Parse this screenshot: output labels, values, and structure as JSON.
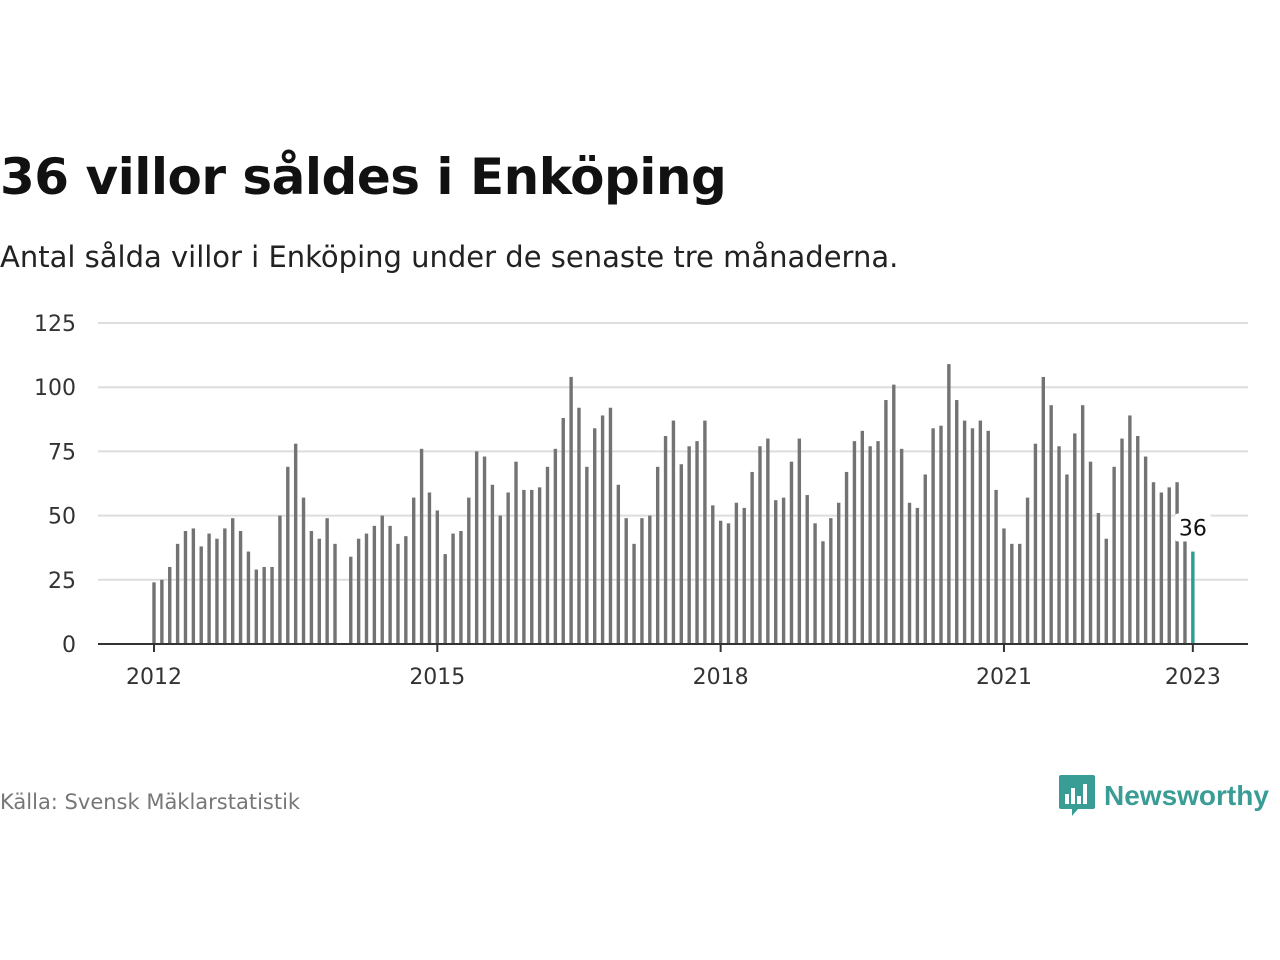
{
  "header": {
    "title": "36 villor såldes i Enköping",
    "subtitle": "Antal sålda villor i Enköping under de senaste tre månaderna."
  },
  "footer": {
    "source": "Källa: Svensk Mäklarstatistik",
    "brand": "Newsworthy",
    "brand_icon": "bar-chart-speech-bubble-icon"
  },
  "colors": {
    "bar": "#737373",
    "highlight": "#2a9d96",
    "grid": "#dddddd",
    "axis": "#333333",
    "brand": "#3a9d95"
  },
  "chart_data": {
    "type": "bar",
    "title": "36 villor såldes i Enköping",
    "subtitle": "Antal sålda villor i Enköping under de senaste tre månaderna.",
    "xlabel": "",
    "ylabel": "",
    "x_start": "2012-01",
    "x_ticks": [
      "2012",
      "2015",
      "2018",
      "2021",
      "2023"
    ],
    "y_ticks": [
      0,
      25,
      50,
      75,
      100,
      125
    ],
    "ylim": [
      0,
      125
    ],
    "grid": true,
    "legend": "none",
    "values": [
      24,
      25,
      30,
      39,
      44,
      45,
      38,
      43,
      41,
      45,
      49,
      44,
      36,
      29,
      30,
      30,
      50,
      69,
      78,
      57,
      44,
      41,
      49,
      39,
      null,
      34,
      41,
      43,
      46,
      50,
      46,
      39,
      42,
      57,
      76,
      59,
      52,
      35,
      43,
      44,
      57,
      75,
      73,
      62,
      50,
      59,
      71,
      60,
      60,
      61,
      69,
      76,
      88,
      104,
      92,
      69,
      84,
      89,
      92,
      62,
      49,
      39,
      49,
      50,
      69,
      81,
      87,
      70,
      77,
      79,
      87,
      54,
      48,
      47,
      55,
      53,
      67,
      77,
      80,
      56,
      57,
      71,
      80,
      58,
      47,
      40,
      49,
      55,
      67,
      79,
      83,
      77,
      79,
      95,
      101,
      76,
      55,
      53,
      66,
      84,
      85,
      109,
      95,
      87,
      84,
      87,
      83,
      60,
      45,
      39,
      39,
      57,
      78,
      104,
      93,
      77,
      66,
      82,
      93,
      71,
      51,
      41,
      69,
      80,
      89,
      81,
      73,
      63,
      59,
      61,
      63,
      41,
      36
    ],
    "highlight_label": "36"
  }
}
